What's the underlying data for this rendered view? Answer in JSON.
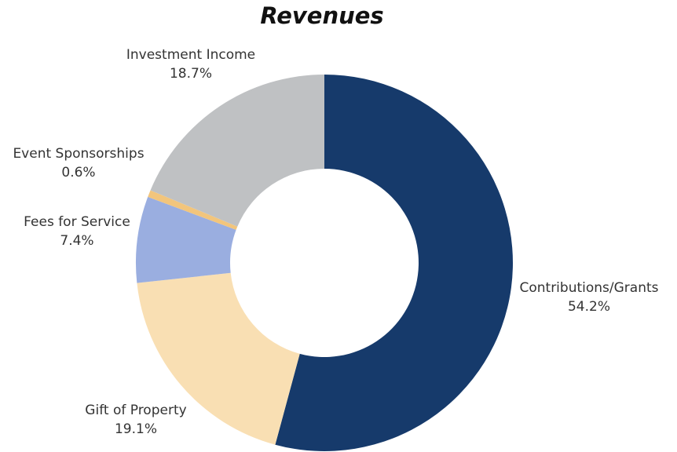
{
  "chart_data": {
    "type": "donut",
    "title": "Revenues",
    "categories": [
      "Contributions/Grants",
      "Gift of Property",
      "Fees for Service",
      "Event Sponsorships",
      "Investment Income"
    ],
    "values": [
      54.2,
      19.1,
      7.4,
      0.6,
      18.7
    ],
    "value_labels": [
      "54.2%",
      "19.1%",
      "7.4%",
      "0.6%",
      "18.7%"
    ],
    "colors": [
      "#163a6b",
      "#f9dfb3",
      "#9aaee0",
      "#f2c57c",
      "#bfc1c3"
    ]
  }
}
